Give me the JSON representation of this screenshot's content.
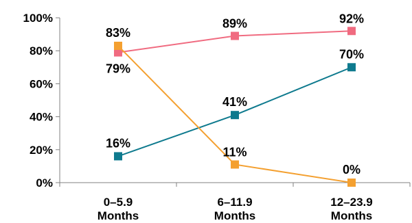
{
  "chart_data": {
    "type": "line",
    "title": "",
    "xlabel": "",
    "ylabel": "",
    "ylim": [
      0,
      100
    ],
    "y_ticks": [
      0,
      20,
      40,
      60,
      80,
      100
    ],
    "y_tick_labels": [
      "0%",
      "20%",
      "40%",
      "60%",
      "80%",
      "100%"
    ],
    "categories": [
      [
        "0–5.9",
        "Months"
      ],
      [
        "6–11.9",
        "Months"
      ],
      [
        "12–23.9",
        "Months"
      ]
    ],
    "grid": false,
    "legend": "none",
    "series": [
      {
        "color": "#F06B80",
        "values": [
          79,
          89,
          92
        ],
        "labels": [
          "79%",
          "89%",
          "92%"
        ]
      },
      {
        "color": "#0E7A8E",
        "values": [
          16,
          41,
          70
        ],
        "labels": [
          "16%",
          "41%",
          "70%"
        ]
      },
      {
        "color": "#F4A030",
        "values": [
          83,
          11,
          0
        ],
        "labels": [
          "83%",
          "11%",
          "0%"
        ]
      }
    ]
  }
}
